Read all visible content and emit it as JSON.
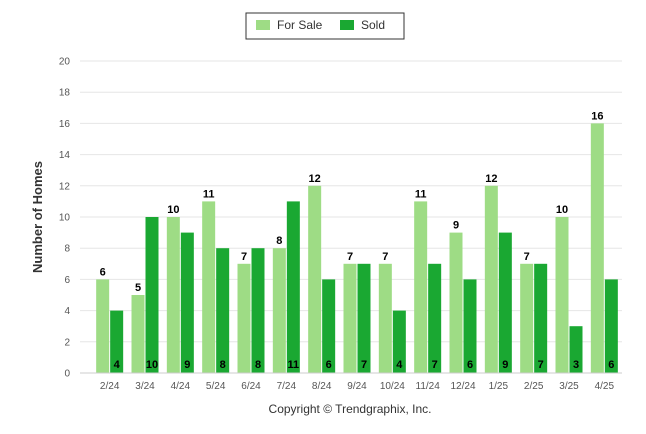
{
  "chart_data": {
    "type": "bar",
    "categories": [
      "2/24",
      "3/24",
      "4/24",
      "5/24",
      "6/24",
      "7/24",
      "8/24",
      "9/24",
      "10/24",
      "11/24",
      "12/24",
      "1/25",
      "2/25",
      "3/25",
      "4/25"
    ],
    "series": [
      {
        "name": "For Sale",
        "color": "#9edc85",
        "values": [
          6,
          5,
          10,
          11,
          7,
          8,
          12,
          7,
          7,
          11,
          9,
          12,
          7,
          10,
          16
        ]
      },
      {
        "name": "Sold",
        "color": "#1aa832",
        "values": [
          4,
          10,
          9,
          8,
          8,
          11,
          6,
          7,
          4,
          7,
          6,
          9,
          7,
          3,
          6
        ]
      }
    ],
    "ylabel": "Number of Homes",
    "ylim": [
      0,
      20
    ],
    "yticks": [
      0,
      2,
      4,
      6,
      8,
      10,
      12,
      14,
      16,
      18,
      20
    ],
    "grid": true,
    "legend": "top-center"
  },
  "credit": "Copyright © Trendgraphix, Inc."
}
